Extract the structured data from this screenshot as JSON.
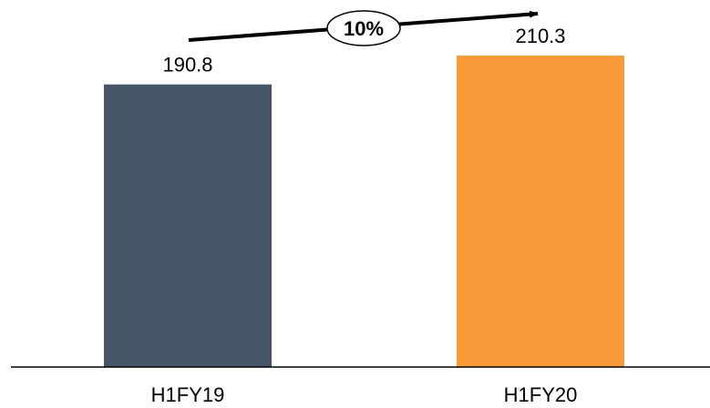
{
  "chart_data": {
    "type": "bar",
    "categories": [
      "H1FY19",
      "H1FY20"
    ],
    "values": [
      190.8,
      210.3
    ],
    "value_labels": [
      "190.8",
      "210.3"
    ],
    "colors": [
      "#475569",
      "#F99A38"
    ],
    "ylim": [
      0,
      230
    ],
    "grid": false,
    "annotation": {
      "text": "10%",
      "type": "growth-arrow"
    }
  }
}
